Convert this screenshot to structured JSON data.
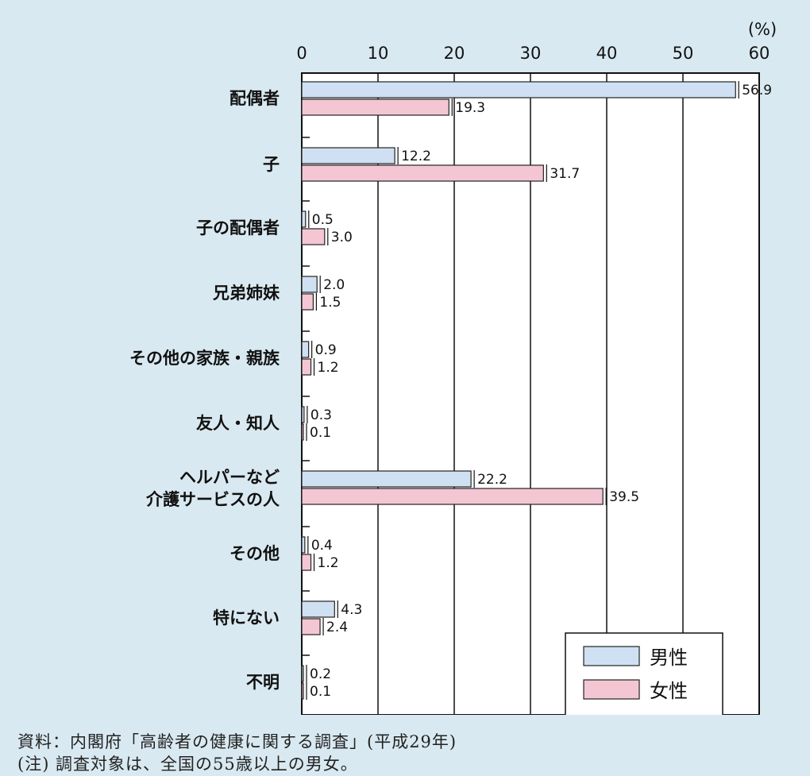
{
  "chart_data": {
    "type": "bar",
    "orientation": "horizontal",
    "unit_label": "(%)",
    "xlim": [
      0,
      60
    ],
    "xticks": [
      0,
      10,
      20,
      30,
      40,
      50,
      60
    ],
    "categories": [
      [
        "配偶者"
      ],
      [
        "子"
      ],
      [
        "子の配偶者"
      ],
      [
        "兄弟姉妹"
      ],
      [
        "その他の家族・親族"
      ],
      [
        "友人・知人"
      ],
      [
        "ヘルパーなど",
        "介護サービスの人"
      ],
      [
        "その他"
      ],
      [
        "特にない"
      ],
      [
        "不明"
      ]
    ],
    "series": [
      {
        "name": "男性",
        "color": "#cfe0f2",
        "values": [
          56.9,
          12.2,
          0.5,
          2.0,
          0.9,
          0.3,
          22.2,
          0.4,
          4.3,
          0.2
        ],
        "labels": [
          "56.9",
          "12.2",
          "0.5",
          "2.0",
          "0.9",
          "0.3",
          "22.2",
          "0.4",
          "4.3",
          "0.2"
        ]
      },
      {
        "name": "女性",
        "color": "#f4c6d3",
        "values": [
          19.3,
          31.7,
          3.0,
          1.5,
          1.2,
          0.1,
          39.5,
          1.2,
          2.4,
          0.1
        ],
        "labels": [
          "19.3",
          "31.7",
          "3.0",
          "1.5",
          "1.2",
          "0.1",
          "39.5",
          "1.2",
          "2.4",
          "0.1"
        ]
      }
    ],
    "grid": true,
    "legend_position": "bottom-right"
  },
  "notes": {
    "source": "資料：内閣府「高齢者の健康に関する調査」(平成29年)",
    "note": "(注) 調査対象は、全国の55歳以上の男女。"
  }
}
